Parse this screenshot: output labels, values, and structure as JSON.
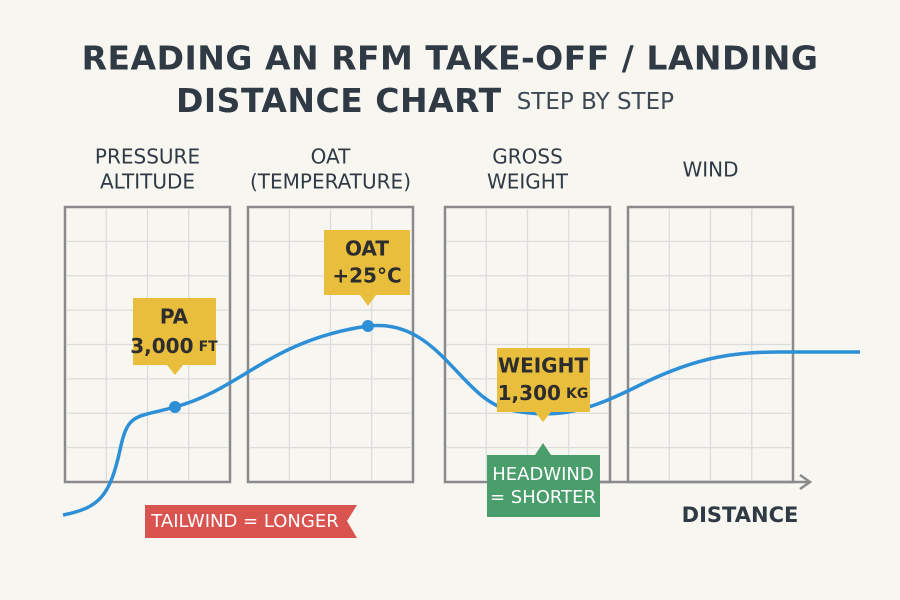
{
  "header": {
    "title_lines": [
      "READING AN RFM TAKE-OFF / LANDING",
      "DISTANCE CHART"
    ],
    "subtitle": "STEP BY STEP"
  },
  "panels": [
    {
      "label_lines": [
        "PRESSURE",
        "ALTITUDE"
      ]
    },
    {
      "label_lines": [
        "OAT",
        "(TEMPERATURE)"
      ]
    },
    {
      "label_lines": [
        "GROSS",
        "WEIGHT"
      ]
    },
    {
      "label_lines": [
        "WIND"
      ]
    }
  ],
  "callouts": [
    {
      "lines": [
        "PA",
        "3,000"
      ],
      "unit": "FT"
    },
    {
      "lines": [
        "OAT",
        "+25°C"
      ]
    },
    {
      "lines": [
        "WEIGHT",
        "1,300"
      ],
      "unit": "KG"
    }
  ],
  "badges": {
    "tailwind": "TAILWIND = LONGER",
    "headwind_lines": [
      "HEADWIND",
      "= SHORTER"
    ]
  },
  "axis_label": "DISTANCE"
}
